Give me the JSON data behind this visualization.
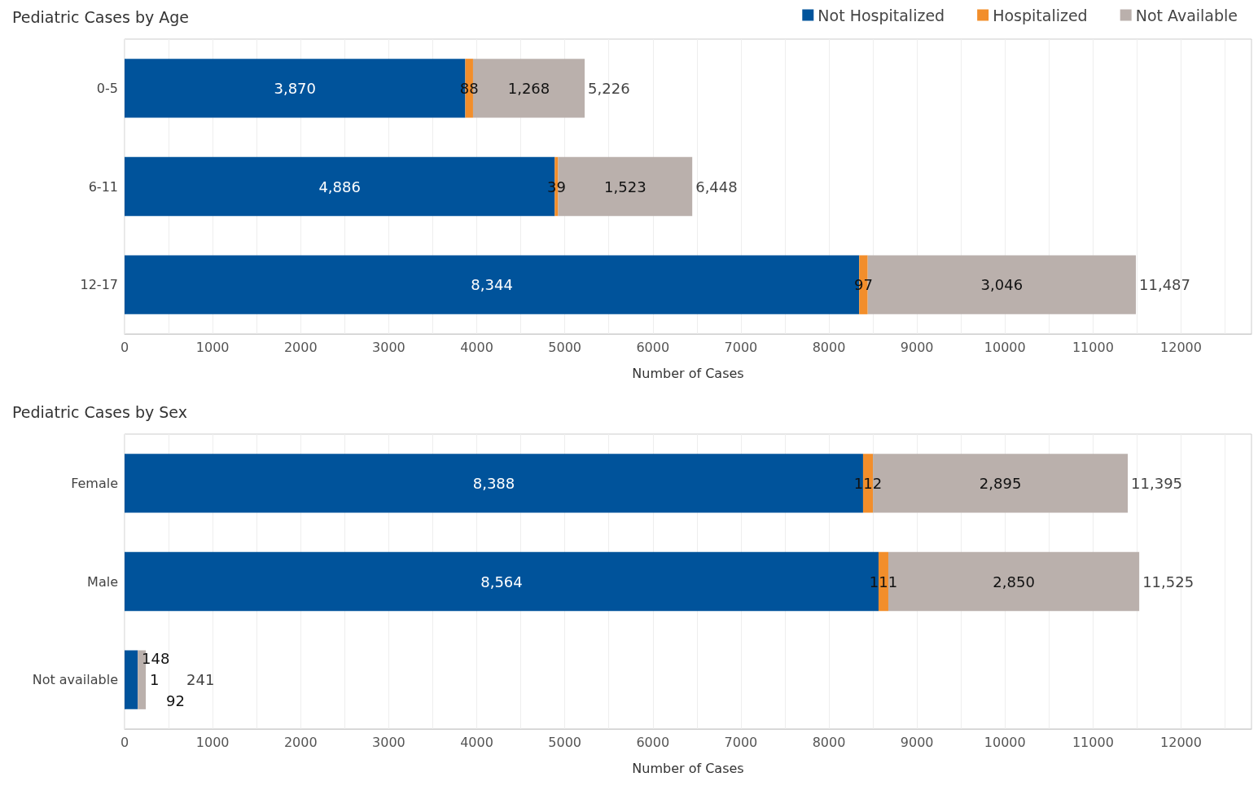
{
  "chart_data": [
    {
      "type": "bar",
      "title": "Pediatric Cases by Age",
      "orientation": "horizontal",
      "stacked": true,
      "categories": [
        "0-5",
        "6-11",
        "12-17"
      ],
      "xlabel": "Number of Cases",
      "series": [
        {
          "name": "Not Hospitalized",
          "color": "#00539b",
          "values": [
            3870,
            4886,
            8344
          ],
          "value_labels": [
            "3,870",
            "4,886",
            "8,344"
          ]
        },
        {
          "name": "Hospitalized",
          "color": "#f28e2b",
          "values": [
            88,
            39,
            97
          ],
          "value_labels": [
            "88",
            "39",
            "97"
          ]
        },
        {
          "name": "Not Available",
          "color": "#bab0ac",
          "values": [
            1268,
            1523,
            3046
          ],
          "value_labels": [
            "1,268",
            "1,523",
            "3,046"
          ]
        }
      ],
      "xlim": [
        0,
        12800
      ],
      "xticks": [
        0,
        {
          "value": 500,
          "label": null
        },
        1000,
        {
          "value": 1500,
          "label": null
        },
        2000,
        {
          "value": 2500,
          "label": null
        },
        3000,
        {
          "value": 3500,
          "label": null
        },
        4000,
        {
          "value": 4500,
          "label": null
        },
        5000,
        {
          "value": 5500,
          "label": null
        },
        6000,
        {
          "value": 6500,
          "label": null
        },
        7000,
        {
          "value": 7500,
          "label": null
        },
        8000,
        {
          "value": 8500,
          "label": null
        },
        9000,
        {
          "value": 9500,
          "label": null
        },
        10000,
        {
          "value": 10500,
          "label": null
        },
        11000,
        {
          "value": 11500,
          "label": null
        },
        12000,
        {
          "value": 12500,
          "label": null
        }
      ],
      "grid": "x",
      "legend": "top right",
      "totals": [
        "5,226",
        "6,448",
        "11,487"
      ]
    },
    {
      "type": "bar",
      "title": "Pediatric Cases by Sex",
      "orientation": "horizontal",
      "stacked": true,
      "categories": [
        "Female",
        "Male",
        "Not available"
      ],
      "xlabel": "Number of Cases",
      "series": [
        {
          "color": "#00539b",
          "values": [
            8388,
            8564,
            148
          ],
          "value_labels": [
            "8,388",
            "8,564",
            "148"
          ]
        },
        {
          "color": "#f28e2b",
          "values": [
            112,
            111,
            1
          ],
          "value_labels": [
            "112",
            "111",
            "1"
          ]
        },
        {
          "color": "#bab0ac",
          "values": [
            2895,
            2850,
            92
          ],
          "value_labels": [
            "2,895",
            "2,850",
            "92"
          ]
        }
      ],
      "xlim": [
        0,
        12800
      ],
      "xticks": [
        0,
        {
          "value": 500,
          "label": null
        },
        1000,
        {
          "value": 1500,
          "label": null
        },
        2000,
        {
          "value": 2500,
          "label": null
        },
        3000,
        {
          "value": 3500,
          "label": null
        },
        4000,
        {
          "value": 4500,
          "label": null
        },
        5000,
        {
          "value": 5500,
          "label": null
        },
        6000,
        {
          "value": 6500,
          "label": null
        },
        7000,
        {
          "value": 7500,
          "label": null
        },
        8000,
        {
          "value": 8500,
          "label": null
        },
        9000,
        {
          "value": 9500,
          "label": null
        },
        10000,
        {
          "value": 10500,
          "label": null
        },
        11000,
        {
          "value": 11500,
          "label": null
        },
        12000,
        {
          "value": 12500,
          "label": null
        }
      ],
      "grid": "x",
      "legend": false,
      "totals": [
        "11,395",
        "11,525",
        "241"
      ]
    }
  ]
}
